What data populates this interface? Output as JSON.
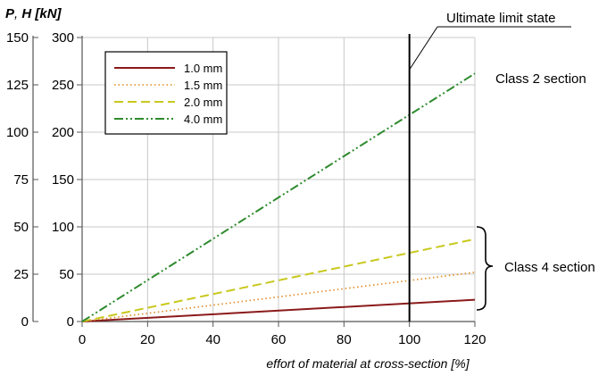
{
  "chart_data": {
    "type": "line",
    "ylabel_parts": [
      "P",
      ", ",
      "H [kN]"
    ],
    "xlabel": "effort of material at cross-section [%]",
    "xlim": [
      0,
      120
    ],
    "ylim_outer": [
      0,
      150
    ],
    "ylim_inner": [
      0,
      300
    ],
    "x_ticks": [
      "0",
      "20",
      "40",
      "60",
      "80",
      "100",
      "120"
    ],
    "y_ticks_outer": [
      "0",
      "25",
      "50",
      "75",
      "100",
      "125",
      "150"
    ],
    "y_ticks_inner": [
      "0",
      "50",
      "100",
      "150",
      "200",
      "250",
      "300"
    ],
    "grid": true,
    "legend_position": "top-left",
    "series": [
      {
        "name": "1.0 mm",
        "style": "solid",
        "color": "#8b1a1a",
        "x": [
          0,
          120
        ],
        "y": [
          0,
          23
        ]
      },
      {
        "name": "1.5 mm",
        "style": "dotted",
        "color": "#e08a1e",
        "x": [
          0,
          120
        ],
        "y": [
          0,
          52
        ]
      },
      {
        "name": "2.0 mm",
        "style": "dashed",
        "color": "#c8c81e",
        "x": [
          0,
          120
        ],
        "y": [
          0,
          87
        ]
      },
      {
        "name": "4.0 mm",
        "style": "dashdotdot",
        "color": "#2e8b2e",
        "x": [
          0,
          120
        ],
        "y": [
          0,
          262
        ]
      }
    ],
    "annotations": {
      "uls_label": "Ultimate limit state",
      "uls_x": 100,
      "class2": "Class 2 section",
      "class4": "Class 4 section"
    }
  }
}
